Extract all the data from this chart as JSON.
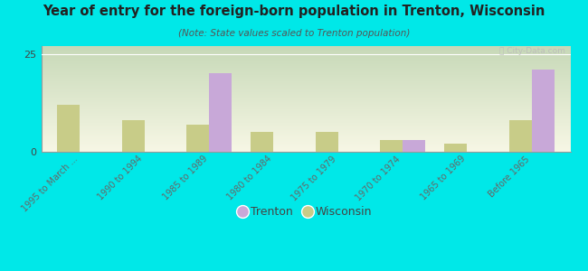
{
  "title": "Year of entry for the foreign-born population in Trenton, Wisconsin",
  "subtitle": "(Note: State values scaled to Trenton population)",
  "categories": [
    "1995 to March ...",
    "1990 to 1994",
    "1985 to 1989",
    "1980 to 1984",
    "1975 to 1979",
    "1970 to 1974",
    "1965 to 1969",
    "Before 1965"
  ],
  "trenton_values": [
    0,
    0,
    20,
    0,
    0,
    3,
    0,
    21
  ],
  "wisconsin_values": [
    12,
    8,
    7,
    5,
    5,
    3,
    2,
    8
  ],
  "trenton_color": "#c8a8d8",
  "wisconsin_color": "#c8cc88",
  "ylim": [
    0,
    27
  ],
  "yticks": [
    0,
    25
  ],
  "bg_color": "#00e8e8",
  "bar_width": 0.35,
  "legend_trenton": "Trenton",
  "legend_wisconsin": "Wisconsin"
}
